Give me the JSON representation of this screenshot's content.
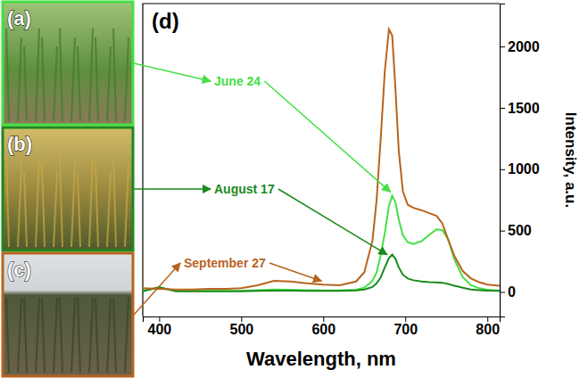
{
  "photos": [
    "(a)",
    "(b)",
    "(c)"
  ],
  "chart_data": {
    "type": "line",
    "panel_label": "(d)",
    "xlabel": "Wavelength, nm",
    "ylabel": "Intensity, a.u.",
    "xlim": [
      380,
      815
    ],
    "xticks": [
      400,
      500,
      600,
      700,
      800
    ],
    "ylim": [
      -200,
      2350
    ],
    "yticks": [
      0,
      500,
      1000,
      1500,
      2000
    ],
    "grid": false,
    "x": [
      380,
      400,
      420,
      440,
      460,
      480,
      500,
      520,
      540,
      560,
      580,
      600,
      620,
      640,
      650,
      660,
      665,
      670,
      675,
      680,
      684,
      688,
      692,
      697,
      703,
      710,
      720,
      730,
      738,
      745,
      752,
      760,
      770,
      780,
      790,
      800,
      815
    ],
    "series": [
      {
        "name": "June 24",
        "color": "#44e044",
        "values": [
          10,
          35,
          10,
          8,
          8,
          8,
          10,
          15,
          20,
          18,
          15,
          12,
          12,
          18,
          35,
          90,
          160,
          300,
          480,
          700,
          785,
          730,
          590,
          460,
          405,
          390,
          415,
          470,
          510,
          505,
          430,
          260,
          120,
          55,
          30,
          18,
          10
        ]
      },
      {
        "name": "August 17",
        "color": "#1a8a1a",
        "values": [
          5,
          40,
          5,
          5,
          5,
          5,
          5,
          8,
          10,
          10,
          8,
          8,
          8,
          12,
          20,
          40,
          70,
          120,
          200,
          275,
          305,
          270,
          200,
          140,
          110,
          95,
          85,
          80,
          78,
          75,
          65,
          50,
          35,
          20,
          15,
          10,
          8
        ]
      },
      {
        "name": "September 27",
        "color": "#b8641e",
        "values": [
          30,
          25,
          20,
          20,
          25,
          25,
          30,
          55,
          90,
          85,
          70,
          60,
          55,
          85,
          160,
          420,
          750,
          1250,
          1800,
          2140,
          2090,
          1650,
          1150,
          820,
          710,
          685,
          665,
          640,
          620,
          560,
          430,
          290,
          170,
          110,
          80,
          60,
          50
        ]
      }
    ]
  }
}
